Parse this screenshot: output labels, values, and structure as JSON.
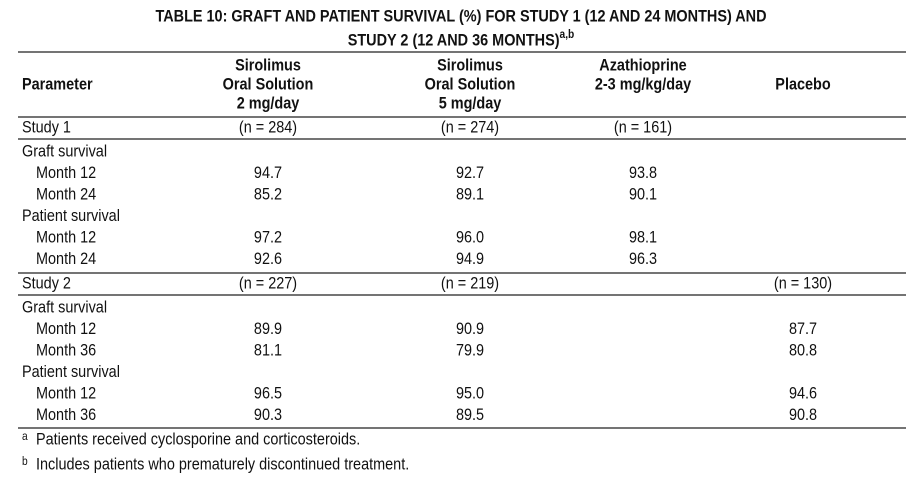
{
  "title": [
    "TABLE 10: GRAFT AND PATIENT SURVIVAL (%) FOR STUDY 1 (12 AND 24 MONTHS) AND",
    "STUDY 2 (12 AND 36 MONTHS)"
  ],
  "title_sup": "a,b",
  "columns": [
    [
      "Parameter"
    ],
    [
      "Sirolimus",
      "Oral Solution",
      "2 mg/day"
    ],
    [
      "Sirolimus",
      "Oral Solution",
      "5 mg/day"
    ],
    [
      "Azathioprine",
      "2-3 mg/kg/day"
    ],
    [
      "Placebo"
    ]
  ],
  "sections": [
    {
      "label": "Study 1",
      "n": [
        "(n = 284)",
        "(n = 274)",
        "(n = 161)",
        null
      ],
      "groups": [
        {
          "label": "Graft survival",
          "rows": [
            [
              "Month 12",
              "94.7",
              "92.7",
              "93.8",
              null
            ],
            [
              "Month 24",
              "85.2",
              "89.1",
              "90.1",
              null
            ]
          ]
        },
        {
          "label": "Patient survival",
          "rows": [
            [
              "Month 12",
              "97.2",
              "96.0",
              "98.1",
              null
            ],
            [
              "Month 24",
              "92.6",
              "94.9",
              "96.3",
              null
            ]
          ]
        }
      ]
    },
    {
      "label": "Study 2",
      "n": [
        "(n = 227)",
        "(n = 219)",
        null,
        "(n = 130)"
      ],
      "groups": [
        {
          "label": "Graft survival",
          "rows": [
            [
              "Month 12",
              "89.9",
              "90.9",
              null,
              "87.7"
            ],
            [
              "Month 36",
              "81.1",
              "79.9",
              null,
              "80.8"
            ]
          ]
        },
        {
          "label": "Patient survival",
          "rows": [
            [
              "Month 12",
              "96.5",
              "95.0",
              null,
              "94.6"
            ],
            [
              "Month 36",
              "90.3",
              "89.5",
              null,
              "90.8"
            ]
          ]
        }
      ]
    }
  ],
  "footnotes": [
    {
      "mark": "a",
      "text": "Patients received cyclosporine and corticosteroids."
    },
    {
      "mark": "b",
      "text": "Includes patients who prematurely discontinued treatment."
    }
  ]
}
